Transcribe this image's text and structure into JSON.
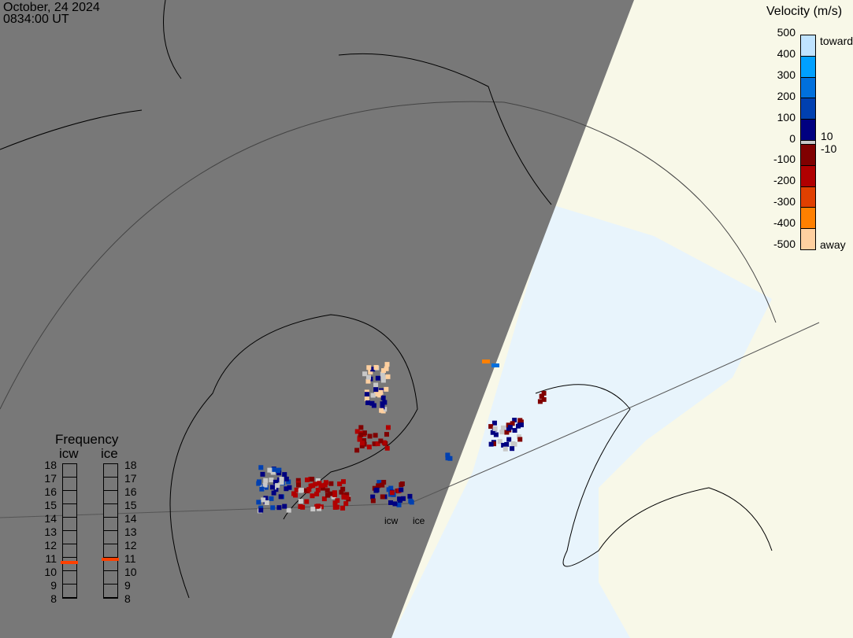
{
  "header": {
    "date": "October, 24 2024",
    "time": "0834:00 UT"
  },
  "velocity_legend": {
    "title": "Velocity (m/s)",
    "ticks": [
      "500",
      "400",
      "300",
      "200",
      "100",
      "0",
      "-100",
      "-200",
      "-300",
      "-400",
      "-500"
    ],
    "toward": "toward",
    "away": "away",
    "pos_limit": "10",
    "neg_limit": "-10",
    "colors": [
      "#bfe3ff",
      "#00a0ff",
      "#0070dd",
      "#0040b0",
      "#000080",
      "#c8c8c8",
      "#800000",
      "#b00000",
      "#e04000",
      "#ff8000",
      "#ffd0a0"
    ]
  },
  "frequency_panel": {
    "title": "Frequency",
    "radars": [
      {
        "label": "icw",
        "value_mhz": 10.6
      },
      {
        "label": "ice",
        "value_mhz": 10.8
      }
    ],
    "ticks": [
      "18",
      "17",
      "16",
      "15",
      "14",
      "13",
      "12",
      "11",
      "10",
      "9",
      "8"
    ],
    "range": [
      8,
      18
    ]
  },
  "map": {
    "radar_labels": [
      "icw",
      "ice"
    ],
    "night_color": "#787878",
    "day_color": "#f8f8e8",
    "ocean_color": "#e8f4fc"
  }
}
